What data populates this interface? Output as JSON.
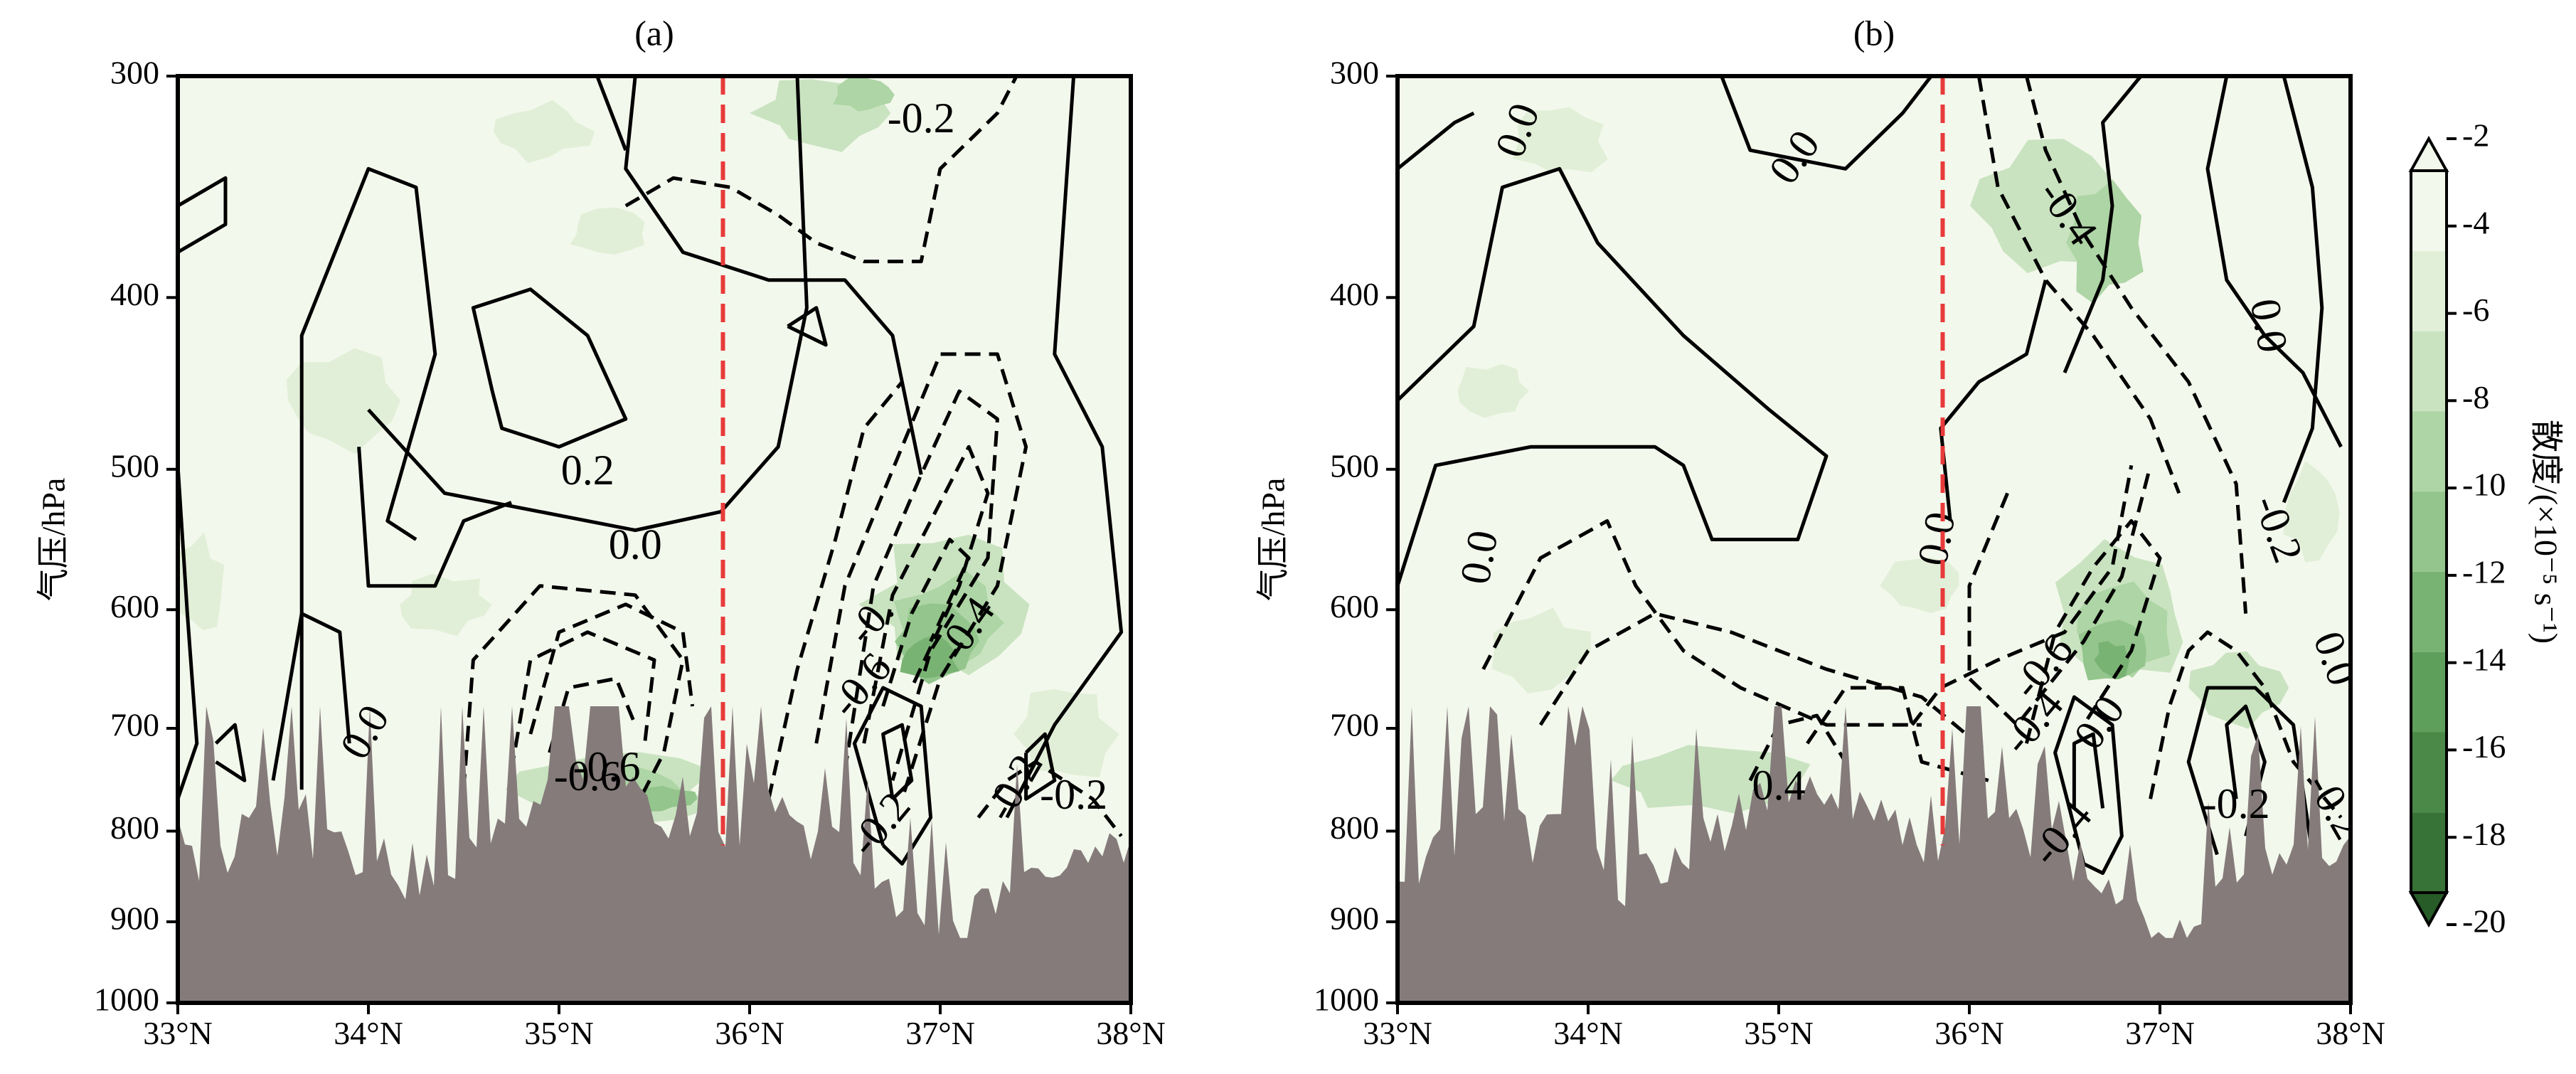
{
  "chart_data": [
    {
      "type": "contour",
      "title": "(a)",
      "ylabel": "气压/hPa",
      "xlabel": "",
      "x_tick_labels": [
        "33°N",
        "34°N",
        "35°N",
        "36°N",
        "37°N",
        "38°N"
      ],
      "y_tick_labels": [
        "300",
        "400",
        "500",
        "600",
        "700",
        "800",
        "900",
        "1000"
      ],
      "xlim": [
        33,
        38
      ],
      "ylim": [
        1000,
        300
      ],
      "y_scale": "log",
      "reference_line_lat": 35.86,
      "contour_labels": [
        "-0.2",
        "0.2",
        "0.0",
        "-0.",
        "-0.6",
        "-0.4",
        "-0.2",
        "0.0",
        "-0.6",
        "-0.6",
        "-0.2",
        "-0.2"
      ]
    },
    {
      "type": "contour",
      "title": "(b)",
      "ylabel": "气压/hPa",
      "xlabel": "",
      "x_tick_labels": [
        "33°N",
        "34°N",
        "35°N",
        "36°N",
        "37°N",
        "38°N"
      ],
      "y_tick_labels": [
        "300",
        "400",
        "500",
        "600",
        "700",
        "800",
        "900",
        "1000"
      ],
      "xlim": [
        33,
        38
      ],
      "ylim": [
        1000,
        300
      ],
      "y_scale": "log",
      "reference_line_lat": 35.86,
      "contour_labels": [
        "0.0",
        "0.0",
        "-0.4",
        "0.0",
        "0.0",
        "0.0",
        "-0.2",
        "-0.6",
        "-0.4",
        "0.0",
        "0.0",
        "-0.4",
        "0.4",
        "-0.2",
        "-0.2"
      ]
    }
  ],
  "colorbar": {
    "label": "散度/(×10⁻⁵ s⁻¹)",
    "tick_labels": [
      "-2",
      "-4",
      "-6",
      "-8",
      "-10",
      "-12",
      "-14",
      "-16",
      "-18",
      "-20"
    ],
    "colors": [
      "#f3f8ec",
      "#e2efd8",
      "#c9e3c0",
      "#aed5a5",
      "#93c58c",
      "#79b373",
      "#5f9f5c",
      "#4a8948",
      "#377236",
      "#275b27"
    ]
  },
  "colors": {
    "reference_line": "#e83a3a",
    "terrain": "#857b7b",
    "contour": "#000000"
  }
}
